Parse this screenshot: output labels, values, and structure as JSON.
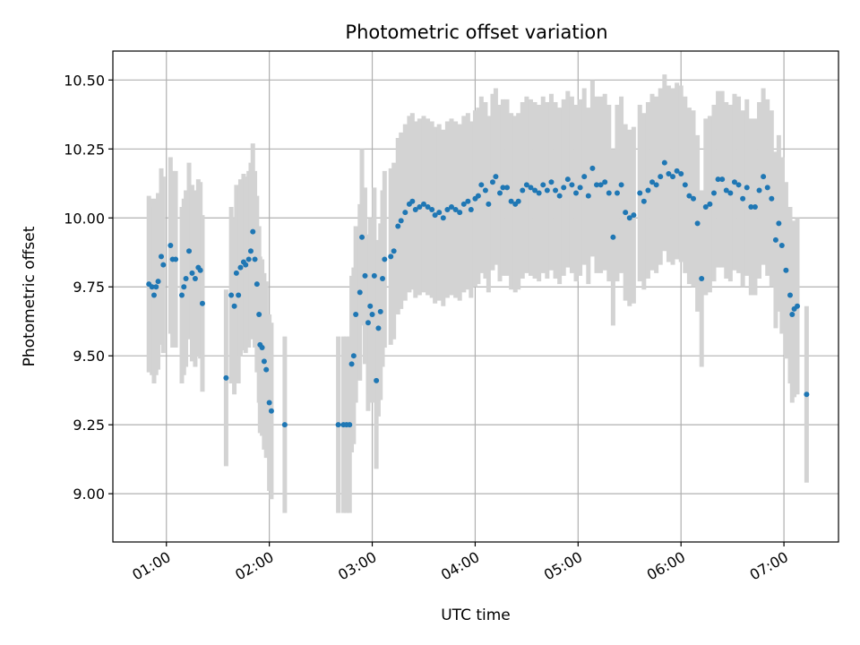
{
  "chart_data": {
    "type": "scatter",
    "title": "Photometric offset variation",
    "xlabel": "UTC time",
    "ylabel": "Photometric offset",
    "x_unit": "UTC hours",
    "xlim_hours": [
      0.48,
      7.53
    ],
    "ylim": [
      8.825,
      10.605
    ],
    "x_ticks": [
      {
        "value": 1,
        "label": "01:00"
      },
      {
        "value": 2,
        "label": "02:00"
      },
      {
        "value": 3,
        "label": "03:00"
      },
      {
        "value": 4,
        "label": "04:00"
      },
      {
        "value": 5,
        "label": "05:00"
      },
      {
        "value": 6,
        "label": "06:00"
      },
      {
        "value": 7,
        "label": "07:00"
      }
    ],
    "y_ticks": [
      {
        "value": 9.0,
        "label": "9.00"
      },
      {
        "value": 9.25,
        "label": "9.25"
      },
      {
        "value": 9.5,
        "label": "9.50"
      },
      {
        "value": 9.75,
        "label": "9.75"
      },
      {
        "value": 10.0,
        "label": "10.00"
      },
      {
        "value": 10.25,
        "label": "10.25"
      },
      {
        "value": 10.5,
        "label": "10.50"
      }
    ],
    "grid": true,
    "colors": {
      "points": "#1f77b4",
      "errorbars": "#d3d3d3",
      "grid": "#b0b0b0"
    },
    "error_half_width": 0.32,
    "points": [
      [
        0.83,
        9.76
      ],
      [
        0.86,
        9.75
      ],
      [
        0.88,
        9.72
      ],
      [
        0.9,
        9.75
      ],
      [
        0.92,
        9.77
      ],
      [
        0.95,
        9.86
      ],
      [
        0.97,
        9.83
      ],
      [
        1.04,
        9.9
      ],
      [
        1.06,
        9.85
      ],
      [
        1.09,
        9.85
      ],
      [
        1.15,
        9.72
      ],
      [
        1.17,
        9.75
      ],
      [
        1.19,
        9.78
      ],
      [
        1.22,
        9.88
      ],
      [
        1.25,
        9.8
      ],
      [
        1.28,
        9.78
      ],
      [
        1.31,
        9.82
      ],
      [
        1.33,
        9.81
      ],
      [
        1.35,
        9.69
      ],
      [
        1.58,
        9.42
      ],
      [
        1.63,
        9.72
      ],
      [
        1.66,
        9.68
      ],
      [
        1.68,
        9.8
      ],
      [
        1.7,
        9.72
      ],
      [
        1.72,
        9.82
      ],
      [
        1.75,
        9.84
      ],
      [
        1.77,
        9.83
      ],
      [
        1.8,
        9.85
      ],
      [
        1.82,
        9.88
      ],
      [
        1.84,
        9.95
      ],
      [
        1.86,
        9.85
      ],
      [
        1.88,
        9.76
      ],
      [
        1.9,
        9.65
      ],
      [
        1.91,
        9.54
      ],
      [
        1.93,
        9.53
      ],
      [
        1.95,
        9.48
      ],
      [
        1.97,
        9.45
      ],
      [
        2.0,
        9.33
      ],
      [
        2.02,
        9.3
      ],
      [
        2.15,
        9.25
      ],
      [
        2.67,
        9.25
      ],
      [
        2.72,
        9.25
      ],
      [
        2.75,
        9.25
      ],
      [
        2.78,
        9.25
      ],
      [
        2.8,
        9.47
      ],
      [
        2.82,
        9.5
      ],
      [
        2.84,
        9.65
      ],
      [
        2.88,
        9.73
      ],
      [
        2.9,
        9.93
      ],
      [
        2.93,
        9.79
      ],
      [
        2.96,
        9.62
      ],
      [
        2.98,
        9.68
      ],
      [
        3.0,
        9.65
      ],
      [
        3.02,
        9.79
      ],
      [
        3.04,
        9.41
      ],
      [
        3.06,
        9.6
      ],
      [
        3.08,
        9.66
      ],
      [
        3.1,
        9.78
      ],
      [
        3.12,
        9.85
      ],
      [
        3.18,
        9.86
      ],
      [
        3.21,
        9.88
      ],
      [
        3.25,
        9.97
      ],
      [
        3.28,
        9.99
      ],
      [
        3.32,
        10.02
      ],
      [
        3.36,
        10.05
      ],
      [
        3.39,
        10.06
      ],
      [
        3.42,
        10.03
      ],
      [
        3.46,
        10.04
      ],
      [
        3.5,
        10.05
      ],
      [
        3.54,
        10.04
      ],
      [
        3.58,
        10.03
      ],
      [
        3.61,
        10.01
      ],
      [
        3.65,
        10.02
      ],
      [
        3.69,
        10.0
      ],
      [
        3.73,
        10.03
      ],
      [
        3.77,
        10.04
      ],
      [
        3.81,
        10.03
      ],
      [
        3.85,
        10.02
      ],
      [
        3.89,
        10.05
      ],
      [
        3.93,
        10.06
      ],
      [
        3.96,
        10.03
      ],
      [
        4.0,
        10.07
      ],
      [
        4.03,
        10.08
      ],
      [
        4.06,
        10.12
      ],
      [
        4.1,
        10.1
      ],
      [
        4.13,
        10.05
      ],
      [
        4.17,
        10.13
      ],
      [
        4.2,
        10.15
      ],
      [
        4.24,
        10.09
      ],
      [
        4.27,
        10.11
      ],
      [
        4.31,
        10.11
      ],
      [
        4.35,
        10.06
      ],
      [
        4.39,
        10.05
      ],
      [
        4.42,
        10.06
      ],
      [
        4.46,
        10.1
      ],
      [
        4.5,
        10.12
      ],
      [
        4.54,
        10.11
      ],
      [
        4.58,
        10.1
      ],
      [
        4.62,
        10.09
      ],
      [
        4.66,
        10.12
      ],
      [
        4.7,
        10.1
      ],
      [
        4.74,
        10.13
      ],
      [
        4.78,
        10.1
      ],
      [
        4.82,
        10.08
      ],
      [
        4.86,
        10.11
      ],
      [
        4.9,
        10.14
      ],
      [
        4.94,
        10.12
      ],
      [
        4.98,
        10.09
      ],
      [
        5.02,
        10.11
      ],
      [
        5.06,
        10.15
      ],
      [
        5.1,
        10.08
      ],
      [
        5.14,
        10.18
      ],
      [
        5.18,
        10.12
      ],
      [
        5.22,
        10.12
      ],
      [
        5.26,
        10.13
      ],
      [
        5.3,
        10.09
      ],
      [
        5.34,
        9.93
      ],
      [
        5.38,
        10.09
      ],
      [
        5.42,
        10.12
      ],
      [
        5.46,
        10.02
      ],
      [
        5.5,
        10.0
      ],
      [
        5.54,
        10.01
      ],
      [
        5.6,
        10.09
      ],
      [
        5.64,
        10.06
      ],
      [
        5.68,
        10.1
      ],
      [
        5.72,
        10.13
      ],
      [
        5.76,
        10.12
      ],
      [
        5.8,
        10.15
      ],
      [
        5.84,
        10.2
      ],
      [
        5.88,
        10.16
      ],
      [
        5.92,
        10.15
      ],
      [
        5.96,
        10.17
      ],
      [
        6.0,
        10.16
      ],
      [
        6.04,
        10.12
      ],
      [
        6.08,
        10.08
      ],
      [
        6.12,
        10.07
      ],
      [
        6.16,
        9.98
      ],
      [
        6.2,
        9.78
      ],
      [
        6.24,
        10.04
      ],
      [
        6.28,
        10.05
      ],
      [
        6.32,
        10.09
      ],
      [
        6.36,
        10.14
      ],
      [
        6.4,
        10.14
      ],
      [
        6.44,
        10.1
      ],
      [
        6.48,
        10.09
      ],
      [
        6.52,
        10.13
      ],
      [
        6.56,
        10.12
      ],
      [
        6.6,
        10.07
      ],
      [
        6.64,
        10.11
      ],
      [
        6.68,
        10.04
      ],
      [
        6.72,
        10.04
      ],
      [
        6.76,
        10.1
      ],
      [
        6.8,
        10.15
      ],
      [
        6.84,
        10.11
      ],
      [
        6.88,
        10.07
      ],
      [
        6.92,
        9.92
      ],
      [
        6.95,
        9.98
      ],
      [
        6.98,
        9.9
      ],
      [
        7.02,
        9.81
      ],
      [
        7.06,
        9.72
      ],
      [
        7.08,
        9.65
      ],
      [
        7.1,
        9.67
      ],
      [
        7.13,
        9.68
      ],
      [
        7.22,
        9.36
      ]
    ]
  }
}
